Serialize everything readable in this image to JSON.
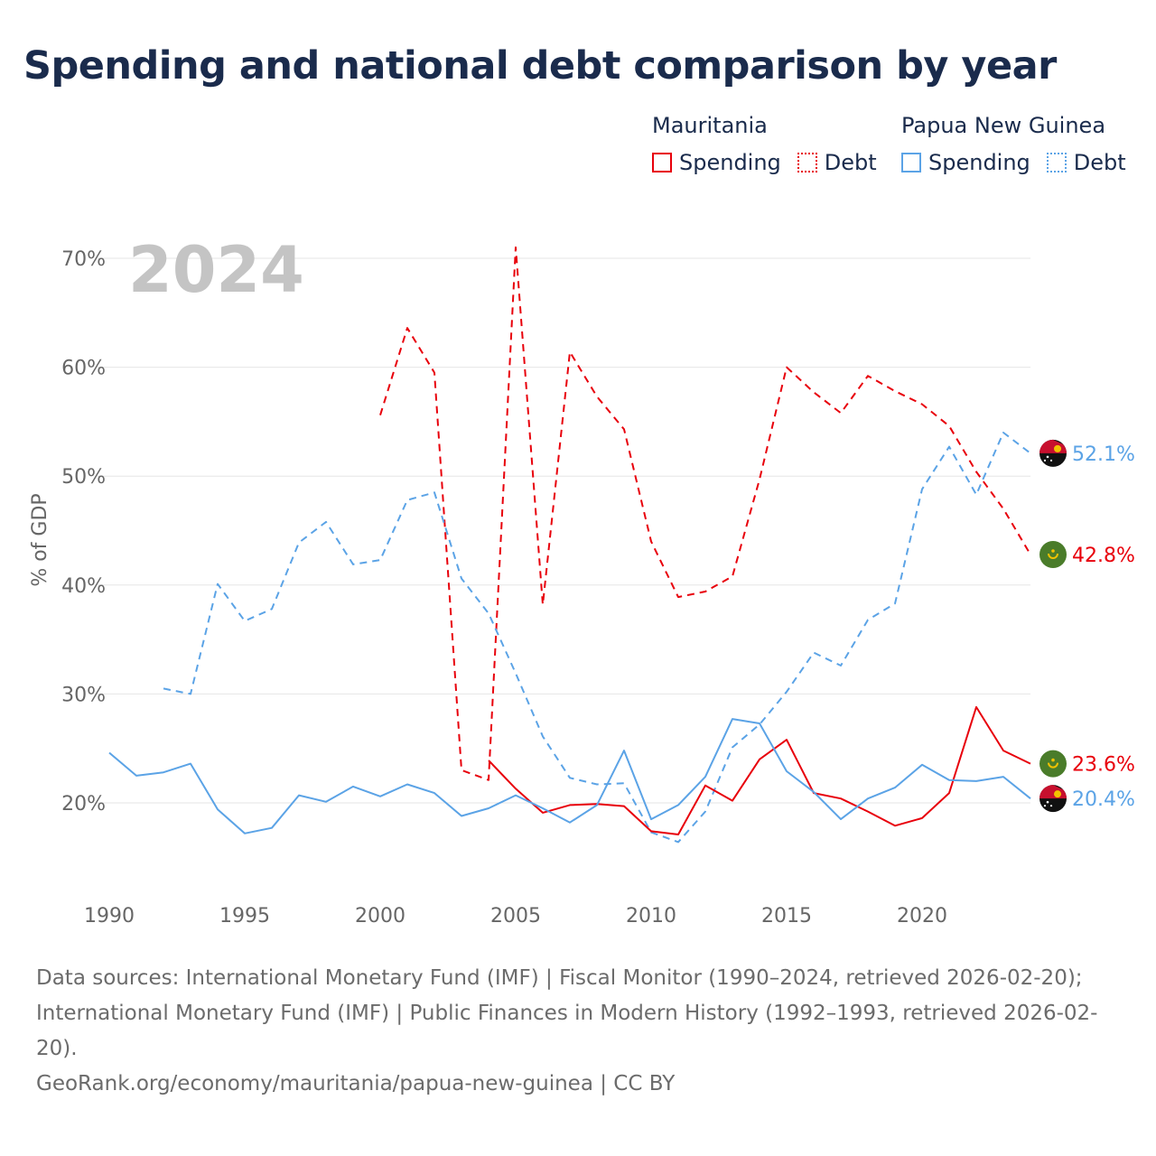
{
  "title": "Spending and national debt comparison by year",
  "legend": {
    "groups": [
      {
        "name": "Mauritania",
        "items": [
          {
            "label": "Spending",
            "style": "solid",
            "color": "#e8000b"
          },
          {
            "label": "Debt",
            "style": "dotted",
            "color": "#e8000b"
          }
        ]
      },
      {
        "name": "Papua New Guinea",
        "items": [
          {
            "label": "Spending",
            "style": "solid",
            "color": "#5ba3e6"
          },
          {
            "label": "Debt",
            "style": "dotted",
            "color": "#5ba3e6"
          }
        ]
      }
    ]
  },
  "footer": {
    "sources": "Data sources: International Monetary Fund (IMF) | Fiscal Monitor (1990–2024, retrieved 2026-02-20); International Monetary Fund (IMF) | Public Finances in Modern History (1992–1993, retrieved 2026-02-20).",
    "credit": "GeoRank.org/economy/mauritania/papua-new-guinea | CC BY"
  },
  "chart_data": {
    "type": "line",
    "year_label": "2024",
    "ylabel": "% of GDP",
    "xlim": [
      1990,
      2024
    ],
    "ylim": [
      13,
      72
    ],
    "yticks": [
      20,
      30,
      40,
      50,
      60,
      70
    ],
    "ytick_labels": [
      "20%",
      "30%",
      "40%",
      "50%",
      "60%",
      "70%"
    ],
    "xticks": [
      1990,
      1995,
      2000,
      2005,
      2010,
      2015,
      2020
    ],
    "xtick_labels": [
      "1990",
      "1995",
      "2000",
      "2005",
      "2010",
      "2015",
      "2020"
    ],
    "series": [
      {
        "name": "Mauritania Debt",
        "country": "Mauritania",
        "flag": "mauritania",
        "color": "#e8000b",
        "dashed": true,
        "end_label": "42.8%",
        "x": [
          2000,
          2001,
          2002,
          2003,
          2004,
          2005,
          2006,
          2007,
          2008,
          2009,
          2010,
          2011,
          2012,
          2013,
          2014,
          2015,
          2016,
          2017,
          2018,
          2019,
          2020,
          2021,
          2022,
          2023,
          2024
        ],
        "values": [
          55.6,
          63.6,
          59.5,
          23.0,
          22.1,
          71.0,
          38.2,
          61.4,
          57.3,
          54.3,
          44.0,
          38.9,
          39.4,
          40.8,
          49.7,
          60.0,
          57.7,
          55.8,
          59.2,
          57.8,
          56.6,
          54.6,
          50.4,
          47.0,
          42.8
        ]
      },
      {
        "name": "Papua New Guinea Debt",
        "country": "Papua New Guinea",
        "flag": "png",
        "color": "#5ba3e6",
        "dashed": true,
        "end_label": "52.1%",
        "x": [
          1992,
          1993,
          1994,
          1995,
          1996,
          1997,
          1998,
          1999,
          2000,
          2001,
          2002,
          2003,
          2004,
          2005,
          2006,
          2007,
          2008,
          2009,
          2010,
          2011,
          2012,
          2013,
          2014,
          2015,
          2016,
          2017,
          2018,
          2019,
          2020,
          2021,
          2022,
          2023,
          2024
        ],
        "values": [
          30.5,
          30.0,
          40.1,
          36.7,
          37.8,
          43.9,
          45.8,
          41.9,
          42.3,
          47.8,
          48.5,
          40.6,
          37.4,
          31.9,
          26.1,
          22.3,
          21.7,
          21.8,
          17.3,
          16.4,
          19.2,
          25.1,
          27.2,
          30.2,
          33.8,
          32.6,
          36.8,
          38.3,
          48.8,
          52.7,
          48.3,
          54.0,
          52.1
        ]
      },
      {
        "name": "Mauritania Spending",
        "country": "Mauritania",
        "flag": "mauritania",
        "color": "#e8000b",
        "dashed": false,
        "end_label": "23.6%",
        "x": [
          2004,
          2005,
          2006,
          2007,
          2008,
          2009,
          2010,
          2011,
          2012,
          2013,
          2014,
          2015,
          2016,
          2017,
          2018,
          2019,
          2020,
          2021,
          2022,
          2023,
          2024
        ],
        "values": [
          23.9,
          21.3,
          19.1,
          19.8,
          19.9,
          19.7,
          17.4,
          17.1,
          21.6,
          20.2,
          24.0,
          25.8,
          20.9,
          20.4,
          19.2,
          17.9,
          18.6,
          20.9,
          28.8,
          24.8,
          23.6
        ]
      },
      {
        "name": "Papua New Guinea Spending",
        "country": "Papua New Guinea",
        "flag": "png",
        "color": "#5ba3e6",
        "dashed": false,
        "end_label": "20.4%",
        "x": [
          1990,
          1991,
          1992,
          1993,
          1994,
          1995,
          1996,
          1997,
          1998,
          1999,
          2000,
          2001,
          2002,
          2003,
          2004,
          2005,
          2006,
          2007,
          2008,
          2009,
          2010,
          2011,
          2012,
          2013,
          2014,
          2015,
          2016,
          2017,
          2018,
          2019,
          2020,
          2021,
          2022,
          2023,
          2024
        ],
        "values": [
          24.6,
          22.5,
          22.8,
          23.6,
          19.4,
          17.2,
          17.7,
          20.7,
          20.1,
          21.5,
          20.6,
          21.7,
          20.9,
          18.8,
          19.5,
          20.7,
          19.5,
          18.2,
          19.8,
          24.8,
          18.5,
          19.8,
          22.4,
          27.7,
          27.3,
          22.9,
          21.0,
          18.5,
          20.4,
          21.4,
          23.5,
          22.1,
          22.0,
          22.4,
          20.4
        ]
      }
    ]
  }
}
